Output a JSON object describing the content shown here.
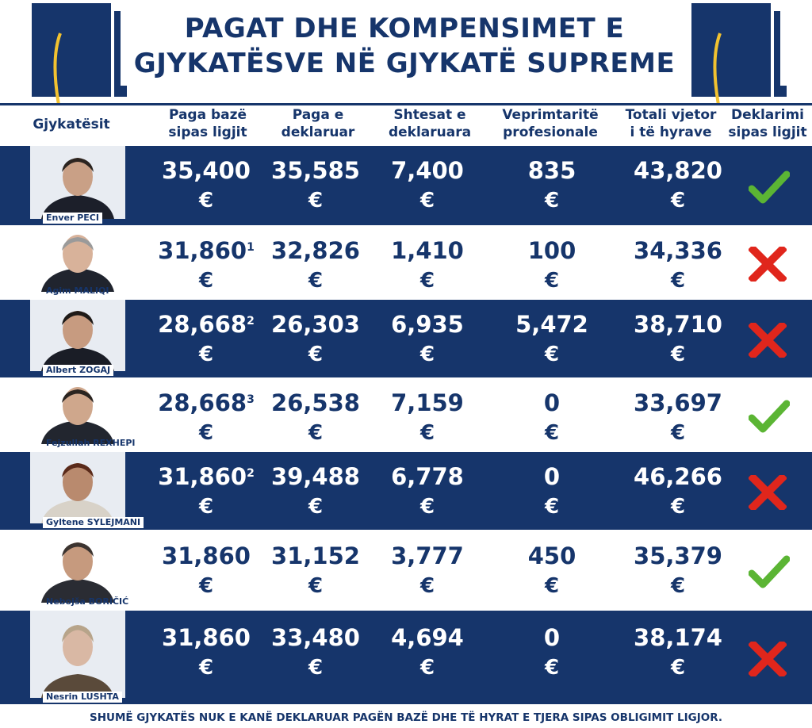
{
  "title": {
    "line1": "PAGAT DHE KOMPENSIMET E",
    "line2": "GJYKATËSVE NË GJYKATË SUPREME"
  },
  "colors": {
    "navy": "#16356b",
    "gold": "#f2c230",
    "green": "#5bb534",
    "red": "#e0261c"
  },
  "headers": {
    "judges": "Gjykatësit",
    "base_pay": [
      "Paga bazë",
      "sipas ligjit"
    ],
    "declared_pay": [
      "Paga e",
      "deklaruar"
    ],
    "allowances": [
      "Shtesat e",
      "deklaruara"
    ],
    "professional": [
      "Veprimtaritë",
      "profesionale"
    ],
    "total": [
      "Totali vjetor",
      "i të hyrave"
    ],
    "declaration": [
      "Deklarimi",
      "sipas ligjit"
    ]
  },
  "currency": "€",
  "rows": [
    {
      "name": "Enver PECI",
      "base_pay": "35,400",
      "base_note": "",
      "declared_pay": "35,585",
      "allowances": "7,400",
      "professional": "835",
      "total": "43,820",
      "compliant": "check-icon"
    },
    {
      "name": "Agim MALIQI",
      "base_pay": "31,860",
      "base_note": "1",
      "declared_pay": "32,826",
      "allowances": "1,410",
      "professional": "100",
      "total": "34,336",
      "compliant": "x-icon"
    },
    {
      "name": "Albert ZOGAJ",
      "base_pay": "28,668",
      "base_note": "2",
      "declared_pay": "26,303",
      "allowances": "6,935",
      "professional": "5,472",
      "total": "38,710",
      "compliant": "x-icon"
    },
    {
      "name": "Fejzullah REXHEPI",
      "base_pay": "28,668",
      "base_note": "3",
      "declared_pay": "26,538",
      "allowances": "7,159",
      "professional": "0",
      "total": "33,697",
      "compliant": "check-icon"
    },
    {
      "name": "Gyltene SYLEJMANI",
      "base_pay": "31,860",
      "base_note": "2",
      "declared_pay": "39,488",
      "allowances": "6,778",
      "professional": "0",
      "total": "46,266",
      "compliant": "x-icon"
    },
    {
      "name": "Nebojša BORIČIĆ",
      "base_pay": "31,860",
      "base_note": "",
      "declared_pay": "31,152",
      "allowances": "3,777",
      "professional": "450",
      "total": "35,379",
      "compliant": "check-icon"
    },
    {
      "name": "Nesrin LUSHTA",
      "base_pay": "31,860",
      "base_note": "",
      "declared_pay": "33,480",
      "allowances": "4,694",
      "professional": "0",
      "total": "38,174",
      "compliant": "x-icon"
    }
  ],
  "footer": "SHUMË GJYKATËS NUK E KANË DEKLARUAR PAGËN BAZË DHE TË HYRAT E TJERA SIPAS OBLIGIMIT LIGJOR."
}
